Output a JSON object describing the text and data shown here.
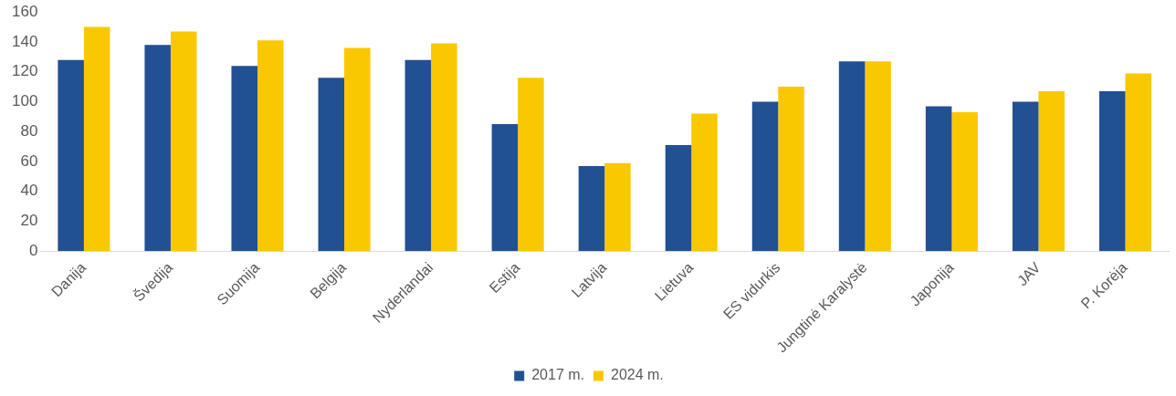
{
  "chart_data": {
    "type": "bar",
    "categories": [
      "Danija",
      "Švedija",
      "Suomija",
      "Belgija",
      "Nyderlandai",
      "Estija",
      "Latvija",
      "Lietuva",
      "ES vidurkis",
      "Jungtinė Karalystė",
      "Japonija",
      "JAV",
      "P. Korėja"
    ],
    "series": [
      {
        "name": "2017 m.",
        "color": "#215093",
        "values": [
          128,
          138,
          124,
          116,
          128,
          85,
          57,
          71,
          100,
          127,
          97,
          100,
          107
        ]
      },
      {
        "name": "2024 m.",
        "color": "#fac800",
        "values": [
          150,
          147,
          141,
          136,
          139,
          116,
          59,
          92,
          110,
          127,
          93,
          107,
          119
        ]
      }
    ],
    "ylim": [
      0,
      160
    ],
    "yticks": [
      0,
      20,
      40,
      60,
      80,
      100,
      120,
      140,
      160
    ],
    "grid": false,
    "legend": "bottom"
  }
}
